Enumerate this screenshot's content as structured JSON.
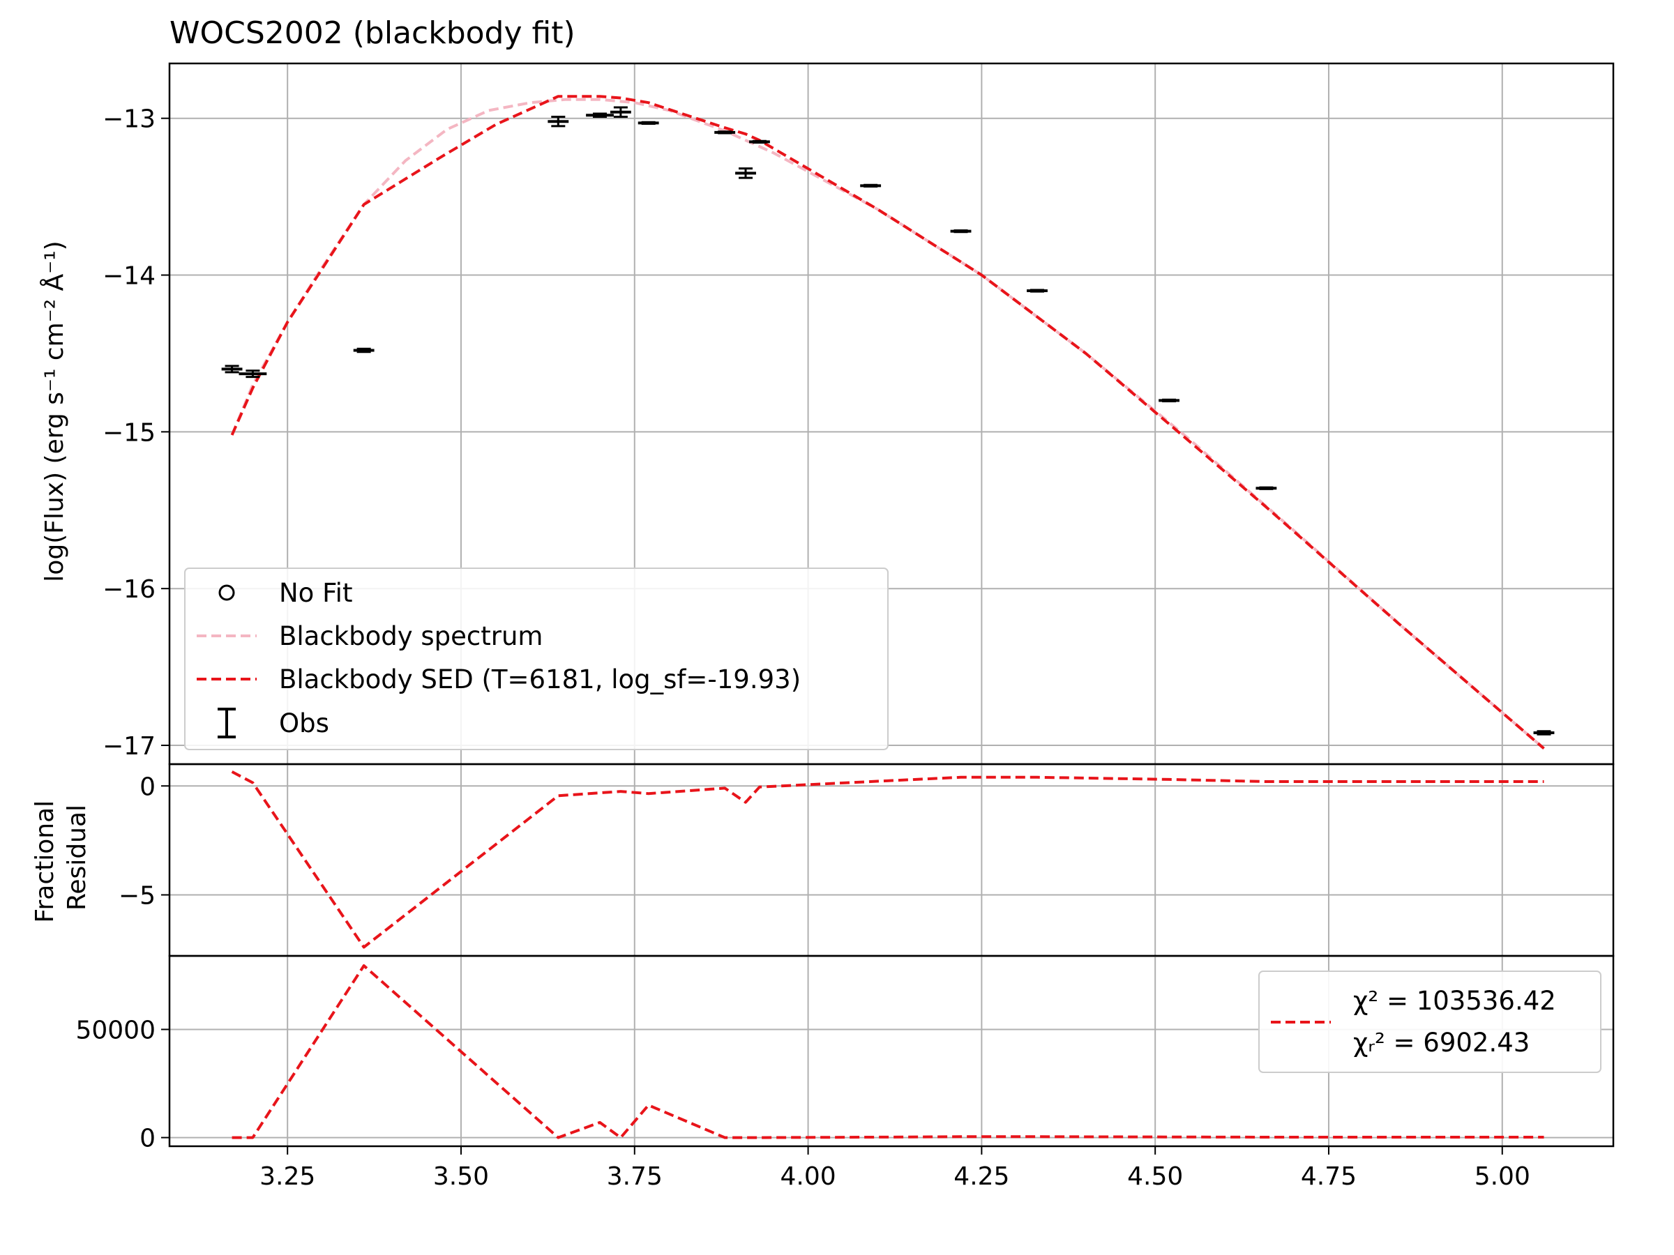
{
  "chart_data": {
    "type": "line",
    "title": "WOCS2002 (blackbody fit)",
    "grid": true,
    "x_axis": {
      "range": [
        3.08,
        5.16
      ],
      "ticks": [
        3.25,
        3.5,
        3.75,
        4.0,
        4.25,
        4.5,
        4.75,
        5.0
      ],
      "tick_labels": [
        "3.25",
        "3.50",
        "3.75",
        "4.00",
        "4.25",
        "4.50",
        "4.75",
        "5.00"
      ]
    },
    "panels": [
      {
        "name": "sed",
        "ylabel": "log(Flux) (erg s⁻¹ cm⁻² Å⁻¹)",
        "ylim": [
          -17.12,
          -12.65
        ],
        "yticks": [
          -13,
          -14,
          -15,
          -16,
          -17
        ],
        "ytick_labels": [
          "−13",
          "−14",
          "−15",
          "−16",
          "−17"
        ],
        "legend_placement": "lower-left",
        "series": [
          {
            "name": "Blackbody spectrum",
            "style": "dashed",
            "color": "#f4b6c2",
            "x": [
              3.17,
              3.2,
              3.25,
              3.3,
              3.36,
              3.42,
              3.48,
              3.54,
              3.6,
              3.65,
              3.7,
              3.75,
              3.8,
              3.88,
              3.95,
              4.1,
              4.25,
              4.4,
              4.55,
              4.7,
              4.85,
              5.06
            ],
            "y": [
              -15.02,
              -14.7,
              -14.3,
              -13.95,
              -13.55,
              -13.27,
              -13.07,
              -12.95,
              -12.9,
              -12.88,
              -12.88,
              -12.9,
              -12.95,
              -13.08,
              -13.22,
              -13.58,
              -14.0,
              -14.5,
              -15.05,
              -15.63,
              -16.22,
              -17.02
            ]
          },
          {
            "name": "Blackbody SED (T=6181, log_sf=-19.93)",
            "style": "dashed",
            "color": "#e8141a",
            "x": [
              3.17,
              3.2,
              3.25,
              3.36,
              3.47,
              3.55,
              3.64,
              3.7,
              3.73,
              3.77,
              3.88,
              3.91,
              3.93,
              4.1,
              4.25,
              4.4,
              4.52,
              4.66,
              4.85,
              5.06
            ],
            "y": [
              -15.02,
              -14.72,
              -14.3,
              -13.55,
              -13.25,
              -13.04,
              -12.86,
              -12.86,
              -12.87,
              -12.9,
              -13.06,
              -13.1,
              -13.14,
              -13.58,
              -14.0,
              -14.5,
              -14.95,
              -15.48,
              -16.22,
              -17.02
            ]
          }
        ],
        "observations": [
          {
            "x": 3.17,
            "y": -14.6,
            "yerr": 0.02,
            "xerr": 0.015
          },
          {
            "x": 3.2,
            "y": -14.63,
            "yerr": 0.02,
            "xerr": 0.02
          },
          {
            "x": 3.36,
            "y": -14.48,
            "yerr": 0.01,
            "xerr": 0.015
          },
          {
            "x": 3.64,
            "y": -13.02,
            "yerr": 0.03,
            "xerr": 0.015
          },
          {
            "x": 3.7,
            "y": -12.98,
            "yerr": 0.01,
            "xerr": 0.02
          },
          {
            "x": 3.73,
            "y": -12.96,
            "yerr": 0.03,
            "xerr": 0.015
          },
          {
            "x": 3.77,
            "y": -13.03,
            "yerr": 0.005,
            "xerr": 0.015
          },
          {
            "x": 3.88,
            "y": -13.09,
            "yerr": 0.005,
            "xerr": 0.015
          },
          {
            "x": 3.91,
            "y": -13.35,
            "yerr": 0.03,
            "xerr": 0.015
          },
          {
            "x": 3.93,
            "y": -13.15,
            "yerr": 0.005,
            "xerr": 0.015
          },
          {
            "x": 4.09,
            "y": -13.43,
            "yerr": 0.005,
            "xerr": 0.015
          },
          {
            "x": 4.22,
            "y": -13.72,
            "yerr": 0.005,
            "xerr": 0.015
          },
          {
            "x": 4.33,
            "y": -14.1,
            "yerr": 0.005,
            "xerr": 0.015
          },
          {
            "x": 4.52,
            "y": -14.8,
            "yerr": 0.005,
            "xerr": 0.015
          },
          {
            "x": 4.66,
            "y": -15.36,
            "yerr": 0.005,
            "xerr": 0.015
          },
          {
            "x": 5.06,
            "y": -16.92,
            "yerr": 0.01,
            "xerr": 0.015
          }
        ],
        "legend": [
          {
            "label": "No Fit",
            "marker": "circle"
          },
          {
            "label": "Blackbody spectrum",
            "marker": "pink-dash"
          },
          {
            "label": "Blackbody SED (T=6181, log_sf=-19.93)",
            "marker": "red-dash"
          },
          {
            "label": "Obs",
            "marker": "errorbar"
          }
        ]
      },
      {
        "name": "fractional-residual",
        "ylabel": "Fractional\nResidual",
        "ylabel_lines": [
          "Fractional",
          "Residual"
        ],
        "ylim": [
          -7.8,
          1.0
        ],
        "yticks": [
          0,
          -5
        ],
        "ytick_labels": [
          "0",
          "−5"
        ],
        "series": [
          {
            "style": "dashed",
            "color": "#e8141a",
            "x": [
              3.17,
              3.2,
              3.36,
              3.64,
              3.73,
              3.77,
              3.88,
              3.91,
              3.93,
              4.09,
              4.22,
              4.33,
              4.52,
              4.66,
              5.06
            ],
            "y": [
              0.65,
              0.15,
              -7.4,
              -0.45,
              -0.25,
              -0.35,
              -0.1,
              -0.75,
              -0.05,
              0.2,
              0.4,
              0.4,
              0.3,
              0.2,
              0.2
            ]
          }
        ]
      },
      {
        "name": "chi-squared",
        "ylim": [
          -4000,
          84000
        ],
        "yticks": [
          0,
          50000
        ],
        "ytick_labels": [
          "0",
          "50000"
        ],
        "legend_placement": "upper-right",
        "legend": [
          {
            "chi2": "χ² = 103536.42",
            "chi2r": "χᵣ² = 6902.43"
          }
        ],
        "series": [
          {
            "style": "dashed",
            "color": "#e8141a",
            "x": [
              3.17,
              3.2,
              3.36,
              3.64,
              3.7,
              3.73,
              3.77,
              3.88,
              3.91,
              3.93,
              4.09,
              4.22,
              4.33,
              4.52,
              4.66,
              5.06
            ],
            "y": [
              0,
              0,
              79500,
              0,
              7000,
              0,
              15000,
              0,
              0,
              0,
              200,
              400,
              400,
              300,
              200,
              200
            ]
          }
        ]
      }
    ]
  }
}
